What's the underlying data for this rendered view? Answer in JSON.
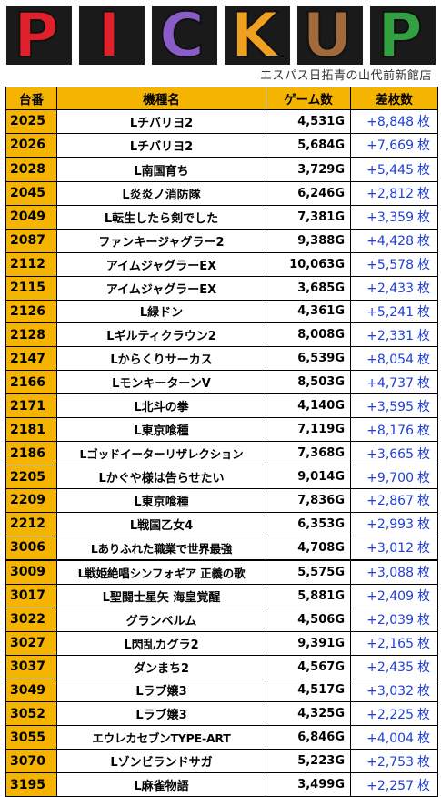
{
  "banner": {
    "title": "PICKUP",
    "letter_colors": [
      "#e0202a",
      "#e0202a",
      "#8a5cc8",
      "#f0a020",
      "#a06a3a",
      "#30a040"
    ],
    "caption": "エスパス日拓青の山代前新館店"
  },
  "table": {
    "headers": [
      "台番",
      "機種名",
      "ゲーム数",
      "差枚数"
    ],
    "unit": "枚",
    "rows": [
      {
        "num": "2025",
        "name": "Lチバリヨ2",
        "games": "4,531G",
        "diff": "+8,848"
      },
      {
        "num": "2026",
        "name": "Lチバリヨ2",
        "games": "5,684G",
        "diff": "+7,669"
      },
      {
        "num": "2028",
        "name": "L南国育ち",
        "games": "3,729G",
        "diff": "+5,445"
      },
      {
        "num": "2045",
        "name": "L炎炎ノ消防隊",
        "games": "6,246G",
        "diff": "+2,812"
      },
      {
        "num": "2049",
        "name": "L転生したら剣でした",
        "games": "7,381G",
        "diff": "+3,359"
      },
      {
        "num": "2087",
        "name": "ファンキージャグラー2",
        "games": "9,388G",
        "diff": "+4,428"
      },
      {
        "num": "2112",
        "name": "アイムジャグラーEX",
        "games": "10,063G",
        "diff": "+5,578"
      },
      {
        "num": "2115",
        "name": "アイムジャグラーEX",
        "games": "3,685G",
        "diff": "+2,433"
      },
      {
        "num": "2126",
        "name": "L緑ドン",
        "games": "4,361G",
        "diff": "+5,241"
      },
      {
        "num": "2128",
        "name": "Lギルティクラウン2",
        "games": "8,008G",
        "diff": "+2,331"
      },
      {
        "num": "2147",
        "name": "Lからくりサーカス",
        "games": "6,539G",
        "diff": "+8,054"
      },
      {
        "num": "2166",
        "name": "LモンキーターンV",
        "games": "8,503G",
        "diff": "+4,737"
      },
      {
        "num": "2171",
        "name": "L北斗の拳",
        "games": "4,140G",
        "diff": "+3,595"
      },
      {
        "num": "2181",
        "name": "L東京喰種",
        "games": "7,119G",
        "diff": "+8,176"
      },
      {
        "num": "2186",
        "name": "Lゴッドイーターリザレクション",
        "games": "7,368G",
        "diff": "+3,665"
      },
      {
        "num": "2205",
        "name": "Lかぐや様は告らせたい",
        "games": "9,014G",
        "diff": "+9,700"
      },
      {
        "num": "2209",
        "name": "L東京喰種",
        "games": "7,836G",
        "diff": "+2,867"
      },
      {
        "num": "2212",
        "name": "L戦国乙女4",
        "games": "6,353G",
        "diff": "+2,993"
      },
      {
        "num": "3006",
        "name": "Lありふれた職業で世界最強",
        "games": "4,708G",
        "diff": "+3,012"
      },
      {
        "num": "3009",
        "name": "L戦姫絶唱シンフォギア 正義の歌",
        "games": "5,575G",
        "diff": "+3,088"
      },
      {
        "num": "3017",
        "name": "L聖闘士星矢 海皇覚醒",
        "games": "5,881G",
        "diff": "+2,409"
      },
      {
        "num": "3022",
        "name": "グランベルム",
        "games": "4,506G",
        "diff": "+2,039"
      },
      {
        "num": "3027",
        "name": "L閃乱カグラ2",
        "games": "9,391G",
        "diff": "+2,165"
      },
      {
        "num": "3037",
        "name": "ダンまち2",
        "games": "4,567G",
        "diff": "+2,435"
      },
      {
        "num": "3049",
        "name": "Lラブ嬢3",
        "games": "4,517G",
        "diff": "+3,032"
      },
      {
        "num": "3052",
        "name": "Lラブ嬢3",
        "games": "4,325G",
        "diff": "+2,225"
      },
      {
        "num": "3055",
        "name": "エウレカセブンTYPE-ART",
        "games": "6,846G",
        "diff": "+4,004"
      },
      {
        "num": "3070",
        "name": "Lゾンビランドサガ",
        "games": "5,223G",
        "diff": "+2,753"
      },
      {
        "num": "3195",
        "name": "L麻雀物語",
        "games": "3,499G",
        "diff": "+2,257"
      }
    ]
  }
}
